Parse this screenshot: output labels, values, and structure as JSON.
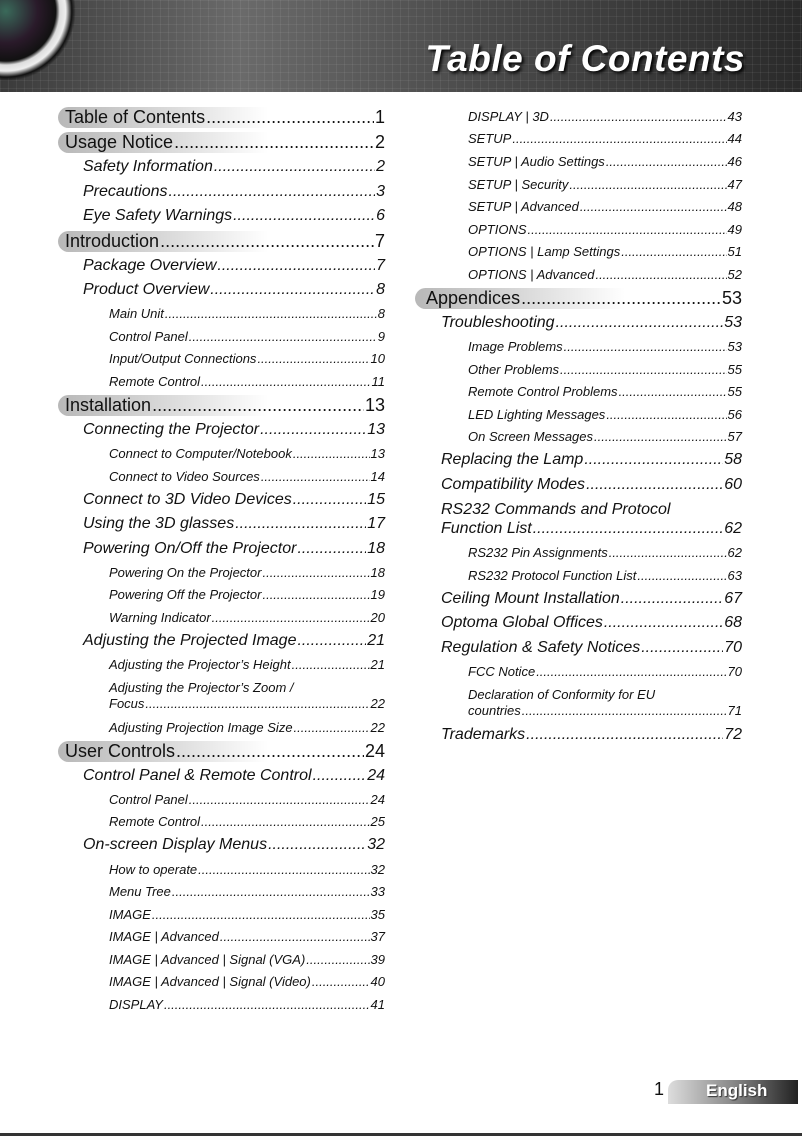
{
  "header": {
    "title": "Table of Contents"
  },
  "left_column": [
    {
      "level": 1,
      "title": "Table of Contents",
      "page": "1"
    },
    {
      "level": 1,
      "title": "Usage Notice",
      "page": "2"
    },
    {
      "level": 2,
      "title": "Safety Information",
      "page": "2"
    },
    {
      "level": 2,
      "title": "Precautions",
      "page": "3"
    },
    {
      "level": 2,
      "title": "Eye Safety Warnings",
      "page": "6"
    },
    {
      "level": 1,
      "title": "Introduction",
      "page": "7"
    },
    {
      "level": 2,
      "title": "Package Overview",
      "page": "7"
    },
    {
      "level": 2,
      "title": "Product Overview",
      "page": "8"
    },
    {
      "level": 3,
      "title": "Main Unit",
      "page": "8"
    },
    {
      "level": 3,
      "title": "Control Panel",
      "page": "9"
    },
    {
      "level": 3,
      "title": "Input/Output Connections",
      "page": "10"
    },
    {
      "level": 3,
      "title": "Remote Control",
      "page": "11"
    },
    {
      "level": 1,
      "title": "Installation",
      "page": "13"
    },
    {
      "level": 2,
      "title": "Connecting the Projector",
      "page": "13"
    },
    {
      "level": 3,
      "title": "Connect to Computer/Notebook",
      "page": "13"
    },
    {
      "level": 3,
      "title": "Connect to Video Sources",
      "page": "14"
    },
    {
      "level": 2,
      "title": "Connect to 3D Video Devices",
      "page": "15"
    },
    {
      "level": 2,
      "title": "Using the 3D glasses",
      "page": "17"
    },
    {
      "level": 2,
      "title": "Powering On/Off the Projector",
      "page": "18"
    },
    {
      "level": 3,
      "title": "Powering On the Projector",
      "page": "18"
    },
    {
      "level": 3,
      "title": "Powering Off the Projector",
      "page": "19"
    },
    {
      "level": 3,
      "title": "Warning Indicator",
      "page": "20"
    },
    {
      "level": 2,
      "title": "Adjusting the Projected Image",
      "page": "21"
    },
    {
      "level": 3,
      "title": "Adjusting the Projector’s Height",
      "page": "21"
    },
    {
      "level": 3,
      "title": "Adjusting the Projector’s Zoom /",
      "title2": "Focus",
      "page": "22"
    },
    {
      "level": 3,
      "title": "Adjusting Projection Image Size",
      "page": "22"
    },
    {
      "level": 1,
      "title": "User Controls",
      "page": "24"
    },
    {
      "level": 2,
      "title": "Control Panel & Remote Control",
      "page": "24"
    },
    {
      "level": 3,
      "title": "Control Panel",
      "page": "24"
    },
    {
      "level": 3,
      "title": "Remote Control",
      "page": "25"
    },
    {
      "level": 2,
      "title": "On-screen Display Menus",
      "page": "32"
    },
    {
      "level": 3,
      "title": "How to operate",
      "page": "32"
    },
    {
      "level": 3,
      "title": "Menu Tree",
      "page": "33"
    },
    {
      "level": 3,
      "title": "IMAGE",
      "page": "35"
    },
    {
      "level": 3,
      "title": "IMAGE | Advanced",
      "page": "37"
    },
    {
      "level": 3,
      "title": "IMAGE | Advanced  | Signal (VGA)",
      "page": "39"
    },
    {
      "level": 3,
      "title": "IMAGE | Advanced | Signal (Video)",
      "page": "40"
    },
    {
      "level": 3,
      "title": "DISPLAY",
      "page": "41"
    }
  ],
  "right_column": [
    {
      "level": 3,
      "title": "DISPLAY | 3D ",
      "page": "43"
    },
    {
      "level": 3,
      "title": "SETUP",
      "page": "44"
    },
    {
      "level": 3,
      "title": "SETUP | Audio Settings",
      "page": "46"
    },
    {
      "level": 3,
      "title": "SETUP | Security",
      "page": "47"
    },
    {
      "level": 3,
      "title": "SETUP | Advanced",
      "page": "48"
    },
    {
      "level": 3,
      "title": "OPTIONS",
      "page": "49"
    },
    {
      "level": 3,
      "title": "OPTIONS | Lamp Settings",
      "page": "51"
    },
    {
      "level": 3,
      "title": "OPTIONS | Advanced",
      "page": "52"
    },
    {
      "level": 1,
      "title": "Appendices",
      "page": "53"
    },
    {
      "level": 2,
      "title": "Troubleshooting",
      "page": "53"
    },
    {
      "level": 3,
      "title": "Image Problems",
      "page": "53"
    },
    {
      "level": 3,
      "title": "Other Problems",
      "page": "55"
    },
    {
      "level": 3,
      "title": "Remote Control Problems",
      "page": "55"
    },
    {
      "level": 3,
      "title": "LED Lighting Messages",
      "page": "56"
    },
    {
      "level": 3,
      "title": "On Screen Messages",
      "page": "57"
    },
    {
      "level": 2,
      "title": "Replacing the Lamp",
      "page": "58"
    },
    {
      "level": 2,
      "title": "Compatibility Modes",
      "page": "60"
    },
    {
      "level": 2,
      "title": "RS232 Commands and Protocol",
      "title2": "Function List",
      "page": "62"
    },
    {
      "level": 3,
      "title": "RS232 Pin Assignments",
      "page": "62"
    },
    {
      "level": 3,
      "title": "RS232 Protocol Function List",
      "page": "63"
    },
    {
      "level": 2,
      "title": "Ceiling Mount Installation",
      "page": "67"
    },
    {
      "level": 2,
      "title": "Optoma Global Offices",
      "page": "68"
    },
    {
      "level": 2,
      "title": "Regulation & Safety Notices",
      "page": "70"
    },
    {
      "level": 3,
      "title": "FCC Notice",
      "page": "70"
    },
    {
      "level": 3,
      "title": "Declaration of Conformity for EU",
      "title2": "countries",
      "page": "71"
    },
    {
      "level": 2,
      "title": "Trademarks",
      "page": "72"
    }
  ],
  "footer": {
    "page_number": "1",
    "language": "English"
  }
}
